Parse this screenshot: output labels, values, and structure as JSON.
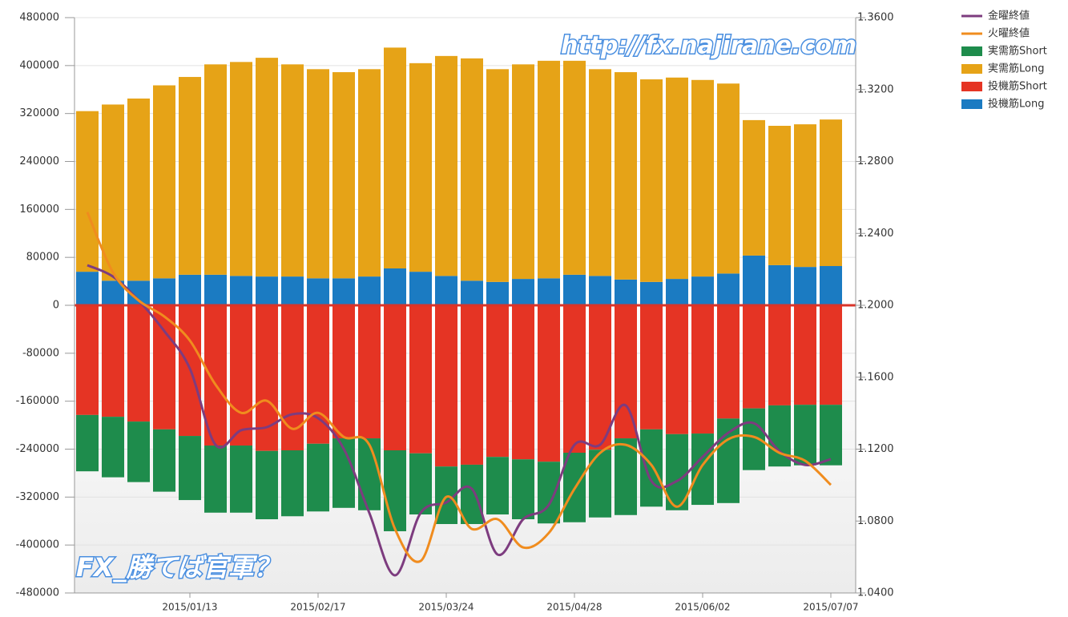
{
  "chart_data": {
    "type": "bar",
    "stacked": true,
    "grid": true,
    "legend": "right",
    "annotations": [
      "http://fx.najirane.com",
      "FX_勝てば官軍？"
    ],
    "categories": [
      null,
      null,
      null,
      null,
      "2015/01/13",
      null,
      null,
      null,
      null,
      "2015/02/17",
      null,
      null,
      null,
      null,
      "2015/03/24",
      null,
      null,
      null,
      null,
      "2015/04/28",
      null,
      null,
      null,
      null,
      "2015/06/02",
      null,
      null,
      null,
      null,
      "2015/07/07"
    ],
    "ylim": [
      -480000,
      480000
    ],
    "yticks": [
      -480000,
      -400000,
      -320000,
      -240000,
      -160000,
      -80000,
      0,
      80000,
      160000,
      240000,
      320000,
      400000,
      480000
    ],
    "y2lim": [
      1.04,
      1.36
    ],
    "y2ticks": [
      {
        "value": 1.04,
        "label": "1.0400"
      },
      {
        "value": 1.08,
        "label": "1.0800"
      },
      {
        "value": 1.12,
        "label": "1.1200"
      },
      {
        "value": 1.16,
        "label": "1.1600"
      },
      {
        "value": 1.2,
        "label": "1.2000"
      },
      {
        "value": 1.24,
        "label": "1.2400"
      },
      {
        "value": 1.28,
        "label": "1.2800"
      },
      {
        "value": 1.32,
        "label": "1.3200"
      },
      {
        "value": 1.36,
        "label": "1.3600"
      }
    ],
    "series": [
      {
        "name": "金曜終値",
        "type": "line",
        "axis": "y2",
        "color": "#7d3c7f",
        "values": [
          1.2223,
          1.216,
          1.2027,
          1.1857,
          1.1648,
          1.1224,
          1.1305,
          1.1322,
          1.1394,
          1.1372,
          1.1202,
          1.0845,
          1.0498,
          1.0845,
          1.0903,
          1.0979,
          1.0614,
          1.081,
          1.089,
          1.1224,
          1.1224,
          1.1443,
          1.1023,
          1.1023,
          1.1157,
          1.1291,
          1.1344,
          1.1188,
          1.1112,
          1.1144
        ]
      },
      {
        "name": "火曜終値",
        "type": "line",
        "axis": "y2",
        "color": "#f08c1e",
        "values": [
          1.2518,
          1.2183,
          1.2027,
          1.1938,
          1.1804,
          1.1559,
          1.1402,
          1.1469,
          1.1313,
          1.1402,
          1.1268,
          1.1224,
          1.0756,
          1.0578,
          1.0934,
          1.0756,
          1.081,
          1.0653,
          1.0734,
          1.0979,
          1.1179,
          1.1224,
          1.1112,
          1.088,
          1.1112,
          1.1255,
          1.1268,
          1.1179,
          1.1135,
          1.1001
        ]
      },
      {
        "name": "実需筋Short",
        "type": "bar",
        "stack": "neg",
        "color": "#1e8c4c",
        "values": [
          -94000,
          -101000,
          -101000,
          -104000,
          -107000,
          -112000,
          -112000,
          -114000,
          -110000,
          -113000,
          -116000,
          -120000,
          -135000,
          -102000,
          -96000,
          -99000,
          -96000,
          -100000,
          -103000,
          -116000,
          -113000,
          -128000,
          -129000,
          -127000,
          -119000,
          -141000,
          -103000,
          -102000,
          -101000,
          -101000
        ]
      },
      {
        "name": "実需筋Long",
        "type": "bar",
        "stack": "pos",
        "color": "#e6a317",
        "values": [
          268000,
          294000,
          304000,
          322000,
          330000,
          351000,
          357000,
          365000,
          354000,
          349000,
          344000,
          346000,
          368500,
          348000,
          367000,
          371000,
          355000,
          358000,
          363000,
          357000,
          345000,
          346000,
          338000,
          336000,
          328000,
          317000,
          226000,
          232500,
          238000,
          244500
        ]
      },
      {
        "name": "投機筋Short",
        "type": "bar",
        "stack": "neg",
        "color": "#e53424",
        "values": [
          -183000,
          -186000,
          -194000,
          -207000,
          -218000,
          -234000,
          -234000,
          -243000,
          -242000,
          -231000,
          -222000,
          -222000,
          -242000,
          -247000,
          -269000,
          -266000,
          -253000,
          -257000,
          -261000,
          -246000,
          -241000,
          -222000,
          -207000,
          -215000,
          -214000,
          -189000,
          -172000,
          -167000,
          -166000,
          -166000
        ]
      },
      {
        "name": "投機筋Long",
        "type": "bar",
        "stack": "pos",
        "color": "#1b7bc2",
        "values": [
          56000,
          41000,
          41000,
          45000,
          51000,
          51000,
          49000,
          48000,
          48000,
          45000,
          45000,
          48000,
          61500,
          56000,
          49000,
          41000,
          39000,
          44000,
          45000,
          51000,
          49000,
          43000,
          39000,
          44000,
          48000,
          53000,
          83000,
          67000,
          64000,
          65500
        ]
      }
    ]
  }
}
